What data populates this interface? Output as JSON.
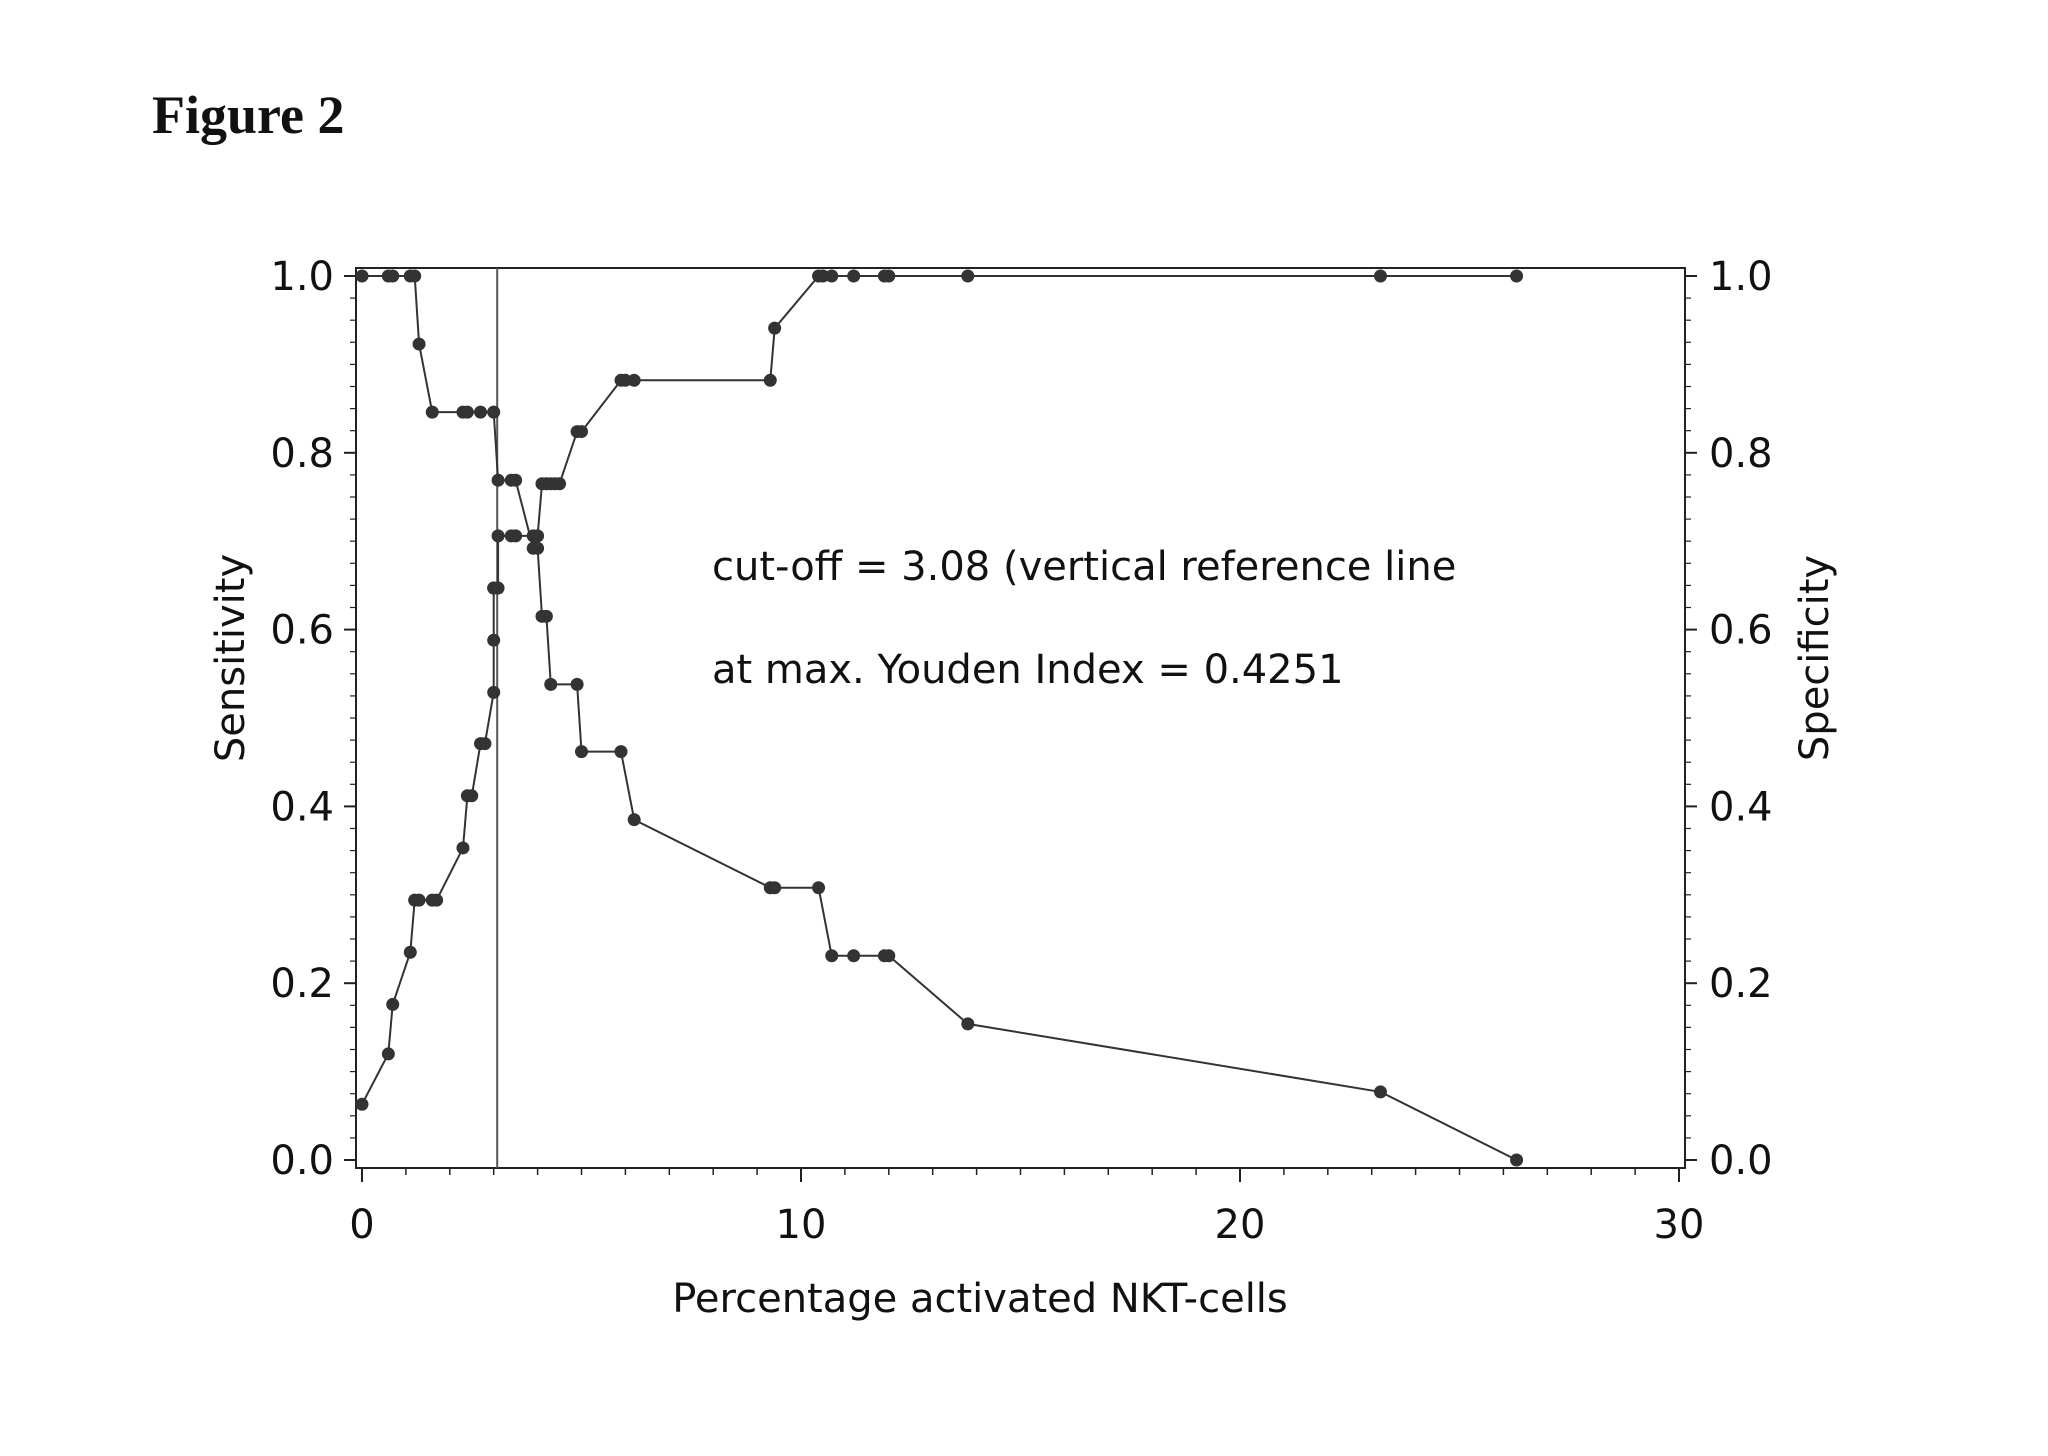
{
  "figure_title": "Figure 2",
  "chart_data": {
    "type": "line",
    "xlabel": "Percentage activated NKT-cells",
    "ylabel_left": "Sensitivity",
    "ylabel_right": "Specificity",
    "xlim": [
      0,
      30
    ],
    "ylim": [
      0,
      1.0
    ],
    "x_ticks": [
      0,
      10,
      20,
      30
    ],
    "y_ticks": [
      0.0,
      0.2,
      0.4,
      0.6,
      0.8,
      1.0
    ],
    "y_tick_labels": [
      "0.0",
      "0.2",
      "0.4",
      "0.6",
      "0.8",
      "1.0"
    ],
    "reference_line_x": 3.08,
    "annotations": [
      "cut-off = 3.08 (vertical reference line",
      "at max. Youden Index = 0.4251"
    ],
    "grid": false,
    "series": [
      {
        "x": [
          0,
          0.6,
          0.7,
          1.1,
          1.2,
          1.3,
          1.6,
          1.7,
          2.3,
          2.4,
          2.5,
          2.7,
          2.8,
          3.0,
          3.0,
          3.0,
          3.0,
          3.1,
          3.1,
          3.4,
          3.5,
          3.9,
          4.0,
          4.1,
          4.2,
          4.3,
          4.4,
          4.5,
          4.9,
          5.0,
          5.9,
          6.0,
          6.2,
          9.3,
          9.4,
          10.4,
          10.5,
          10.7,
          11.2,
          11.9,
          12.0,
          13.8,
          23.2,
          26.3
        ],
        "y": [
          0.063,
          0.12,
          0.176,
          0.235,
          0.294,
          0.294,
          0.294,
          0.294,
          0.353,
          0.412,
          0.412,
          0.471,
          0.471,
          0.529,
          0.588,
          0.647,
          0.647,
          0.647,
          0.706,
          0.706,
          0.706,
          0.706,
          0.706,
          0.765,
          0.765,
          0.765,
          0.765,
          0.765,
          0.824,
          0.824,
          0.882,
          0.882,
          0.882,
          0.882,
          0.941,
          1.0,
          1.0,
          1.0,
          1.0,
          1.0,
          1.0,
          1.0,
          1.0,
          1.0
        ]
      },
      {
        "x": [
          0,
          0.6,
          0.7,
          1.1,
          1.2,
          1.3,
          1.6,
          2.3,
          2.4,
          2.7,
          3.0,
          3.1,
          3.4,
          3.5,
          3.9,
          4.0,
          4.1,
          4.2,
          4.3,
          4.9,
          5.0,
          5.9,
          6.2,
          9.3,
          9.4,
          10.4,
          10.7,
          11.2,
          11.9,
          12.0,
          13.8,
          23.2,
          26.3
        ],
        "y": [
          1.0,
          1.0,
          1.0,
          1.0,
          1.0,
          0.923,
          0.846,
          0.846,
          0.846,
          0.846,
          0.846,
          0.769,
          0.769,
          0.769,
          0.692,
          0.692,
          0.615,
          0.615,
          0.538,
          0.538,
          0.462,
          0.462,
          0.385,
          0.308,
          0.308,
          0.308,
          0.231,
          0.231,
          0.231,
          0.231,
          0.154,
          0.077,
          0.0
        ]
      }
    ]
  }
}
